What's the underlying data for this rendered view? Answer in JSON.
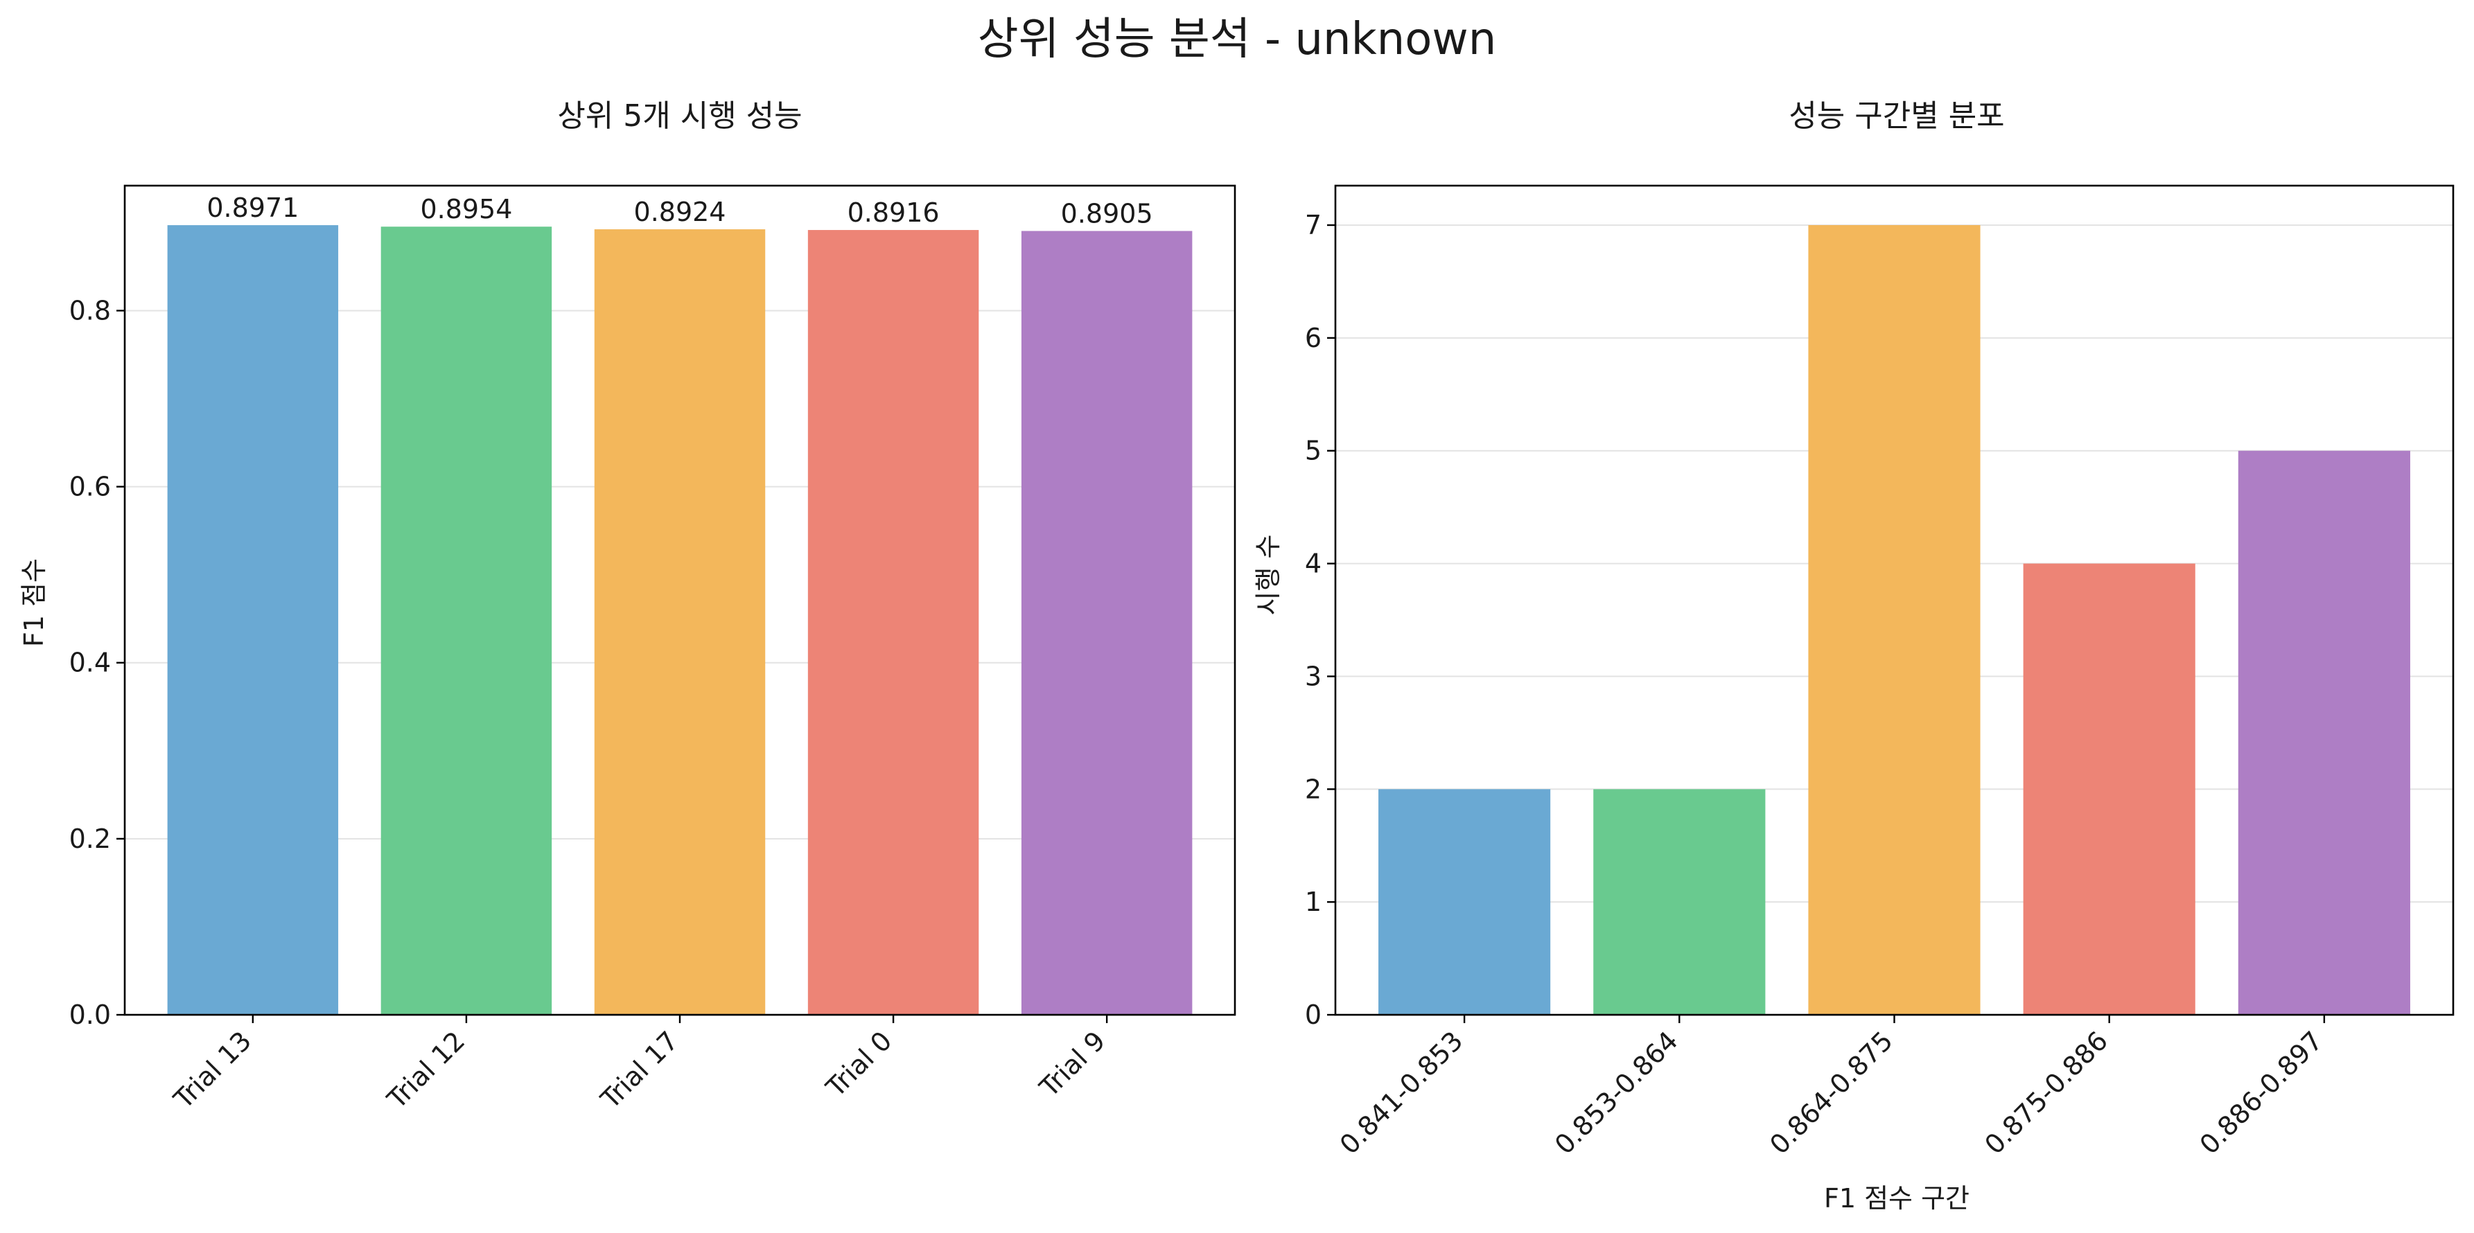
{
  "suptitle": "상위 성능 분석 - unknown",
  "chart_data": [
    {
      "type": "bar",
      "title": "상위 5개 시행 성능",
      "xlabel": "",
      "ylabel": "F1 점수",
      "categories": [
        "Trial 13",
        "Trial 12",
        "Trial 17",
        "Trial 0",
        "Trial 9"
      ],
      "values": [
        0.8971,
        0.8954,
        0.8924,
        0.8916,
        0.8905
      ],
      "value_labels": [
        "0.8971",
        "0.8954",
        "0.8924",
        "0.8916",
        "0.8905"
      ],
      "colors": [
        "#6aa9d3",
        "#69ca8f",
        "#f3b75b",
        "#ed8476",
        "#ae7ec5"
      ],
      "ylim": [
        0,
        0.942
      ],
      "yticks": [
        0.0,
        0.2,
        0.4,
        0.6,
        0.8
      ],
      "ytick_labels": [
        "0.0",
        "0.2",
        "0.4",
        "0.6",
        "0.8"
      ],
      "grid": "y",
      "legend": "none",
      "xtick_rotation": 45
    },
    {
      "type": "bar",
      "title": "성능 구간별 분포",
      "xlabel": "F1 점수 구간",
      "ylabel": "시행 수",
      "categories": [
        "0.841-0.853",
        "0.853-0.864",
        "0.864-0.875",
        "0.875-0.886",
        "0.886-0.897"
      ],
      "values": [
        2,
        2,
        7,
        4,
        5
      ],
      "colors": [
        "#6aa9d3",
        "#69ca8f",
        "#f3b75b",
        "#ed8476",
        "#ae7ec5"
      ],
      "ylim": [
        0,
        7.35
      ],
      "yticks": [
        0,
        1,
        2,
        3,
        4,
        5,
        6,
        7
      ],
      "ytick_labels": [
        "0",
        "1",
        "2",
        "3",
        "4",
        "5",
        "6",
        "7"
      ],
      "grid": "y",
      "legend": "none",
      "xtick_rotation": 45
    }
  ]
}
